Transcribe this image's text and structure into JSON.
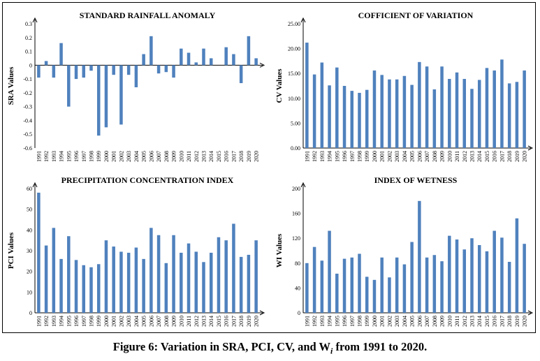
{
  "figure": {
    "caption_prefix": "Figure 6",
    "caption_rest": ": Variation in SRA, PCI, CV,  and W",
    "caption_sub": "i",
    "caption_end": " from 1991 to 2020."
  },
  "colors": {
    "bar": "#4f81bd",
    "axis": "#000000"
  },
  "chart_data": [
    {
      "id": "sra",
      "type": "bar",
      "title": "STANDARD RAINFALL ANOMALY",
      "ylabel": "SRA Values",
      "xlabel": "",
      "ylim": [
        -0.6,
        0.3
      ],
      "yticks": [
        "0.3",
        "0.2",
        "0.1",
        "0",
        "-0.1",
        "-0.2",
        "-0.3",
        "-0.4",
        "-0.5",
        "-0.6"
      ],
      "ytick_values": [
        0.3,
        0.2,
        0.1,
        0,
        -0.1,
        -0.2,
        -0.3,
        -0.4,
        -0.5,
        -0.6
      ],
      "categories": [
        "1991",
        "1992",
        "1993",
        "1994",
        "1995",
        "1996",
        "1997",
        "1998",
        "1999",
        "2000",
        "2001",
        "2002",
        "2003",
        "2004",
        "2005",
        "2006",
        "2007",
        "2008",
        "2009",
        "2010",
        "2011",
        "2012",
        "2013",
        "2014",
        "2015",
        "2016",
        "2017",
        "2018",
        "2019",
        "2020"
      ],
      "values": [
        -0.09,
        0.03,
        -0.09,
        0.16,
        -0.3,
        -0.1,
        -0.09,
        -0.04,
        -0.51,
        -0.45,
        -0.07,
        -0.43,
        -0.07,
        -0.16,
        0.08,
        0.21,
        -0.06,
        -0.05,
        -0.09,
        0.12,
        0.09,
        0.02,
        0.12,
        0.05,
        0.0,
        0.13,
        0.08,
        -0.13,
        0.21,
        0.05
      ],
      "grid": false
    },
    {
      "id": "cv",
      "type": "bar",
      "title": "COFFICIENT OF VARIATION",
      "ylabel": "CV Values",
      "xlabel": "",
      "ylim": [
        0,
        25
      ],
      "yticks": [
        "25.00",
        "20.00",
        "15.00",
        "10.00",
        "5.00",
        "0.00"
      ],
      "ytick_values": [
        25,
        20,
        15,
        10,
        5,
        0
      ],
      "categories": [
        "1991",
        "1992",
        "1993",
        "1994",
        "1995",
        "1996",
        "1997",
        "1998",
        "1999",
        "2000",
        "2001",
        "2002",
        "2003",
        "2004",
        "2005",
        "2006",
        "2007",
        "2008",
        "2009",
        "2010",
        "2011",
        "2012",
        "2013",
        "2014",
        "2015",
        "2016",
        "2017",
        "2018",
        "2019",
        "2020"
      ],
      "values": [
        21.2,
        14.8,
        17.2,
        12.6,
        16.2,
        12.5,
        11.5,
        11.1,
        11.7,
        15.6,
        14.7,
        13.8,
        13.8,
        14.5,
        12.7,
        17.3,
        16.4,
        11.8,
        16.4,
        13.9,
        15.2,
        13.9,
        11.9,
        13.7,
        16.1,
        15.6,
        17.8,
        13.0,
        13.3,
        15.6
      ],
      "grid": false
    },
    {
      "id": "pci",
      "type": "bar",
      "title": "PRECIPITATION CONCENTRATION INDEX",
      "ylabel": "PCI Values",
      "xlabel": "",
      "ylim": [
        0,
        60
      ],
      "yticks": [
        "60",
        "50",
        "40",
        "30",
        "20",
        "10",
        "0"
      ],
      "ytick_values": [
        60,
        50,
        40,
        30,
        20,
        10,
        0
      ],
      "categories": [
        "1991",
        "1992",
        "1993",
        "1994",
        "1995",
        "1996",
        "1997",
        "1998",
        "1999",
        "2000",
        "2001",
        "2002",
        "2003",
        "2004",
        "2005",
        "2006",
        "2007",
        "2008",
        "2009",
        "2010",
        "2011",
        "2012",
        "2013",
        "2014",
        "2015",
        "2016",
        "2017",
        "2018",
        "2019",
        "2020"
      ],
      "values": [
        58,
        32.5,
        41,
        26,
        37,
        25.5,
        23,
        22,
        23.5,
        35,
        32,
        29.5,
        29,
        31.5,
        26,
        41,
        37.5,
        24,
        37.5,
        29,
        33.5,
        29.5,
        24.5,
        29,
        36.5,
        35,
        43,
        27,
        28,
        35
      ],
      "grid": false
    },
    {
      "id": "wi",
      "type": "bar",
      "title": "INDEX OF WETNESS",
      "ylabel": "WI Values",
      "xlabel": "",
      "ylim": [
        0,
        200
      ],
      "yticks": [
        "200",
        "160",
        "120",
        "80",
        "40",
        "0"
      ],
      "ytick_values": [
        200,
        160,
        120,
        80,
        40,
        0
      ],
      "categories": [
        "1991",
        "1992",
        "1993",
        "1994",
        "1995",
        "1996",
        "1997",
        "1998",
        "1999",
        "2000",
        "2001",
        "2002",
        "2003",
        "2004",
        "2005",
        "2006",
        "2007",
        "2008",
        "2009",
        "2010",
        "2011",
        "2012",
        "2013",
        "2014",
        "2015",
        "2016",
        "2017",
        "2018",
        "2019",
        "2020"
      ],
      "values": [
        80,
        106,
        84,
        132,
        63,
        87,
        89,
        95,
        58,
        53,
        89,
        57,
        89,
        78,
        114,
        180,
        89,
        93,
        83,
        124,
        118,
        102,
        120,
        109,
        99,
        132,
        121,
        82,
        152,
        111
      ],
      "grid": false
    }
  ]
}
